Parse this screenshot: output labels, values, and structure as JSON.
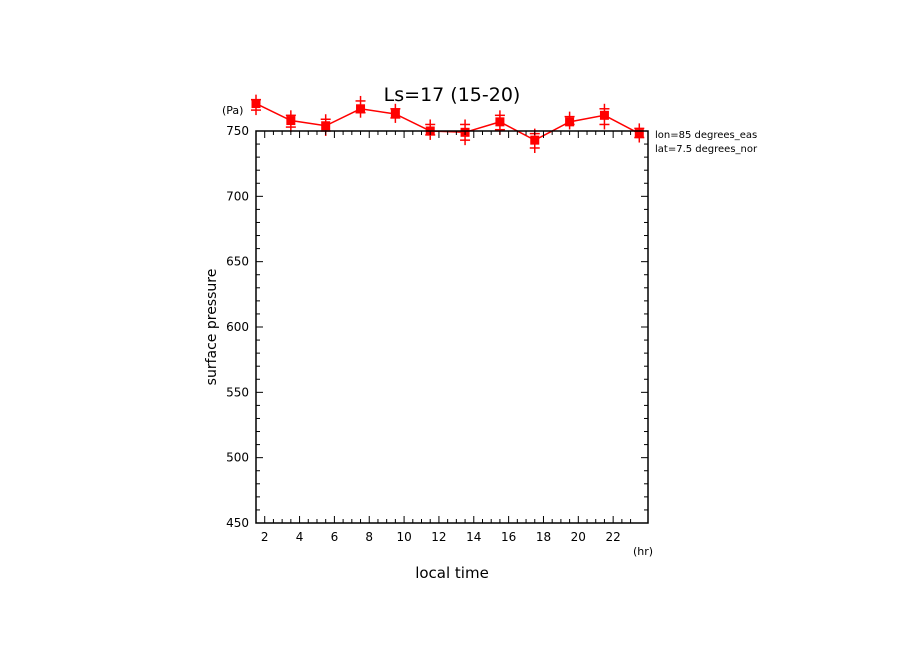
{
  "chart_data": {
    "type": "line",
    "title": "Ls=17 (15-20)",
    "xlabel": "local time",
    "ylabel": "surface pressure",
    "x_unit": "(hr)",
    "y_unit": "(Pa)",
    "xlim": [
      1.5,
      24
    ],
    "ylim": [
      450,
      750
    ],
    "x_ticks": [
      2,
      4,
      6,
      8,
      10,
      12,
      14,
      16,
      18,
      20,
      22
    ],
    "y_ticks": [
      450,
      500,
      550,
      600,
      650,
      700,
      750
    ],
    "x_tick_labels": [
      "2",
      "4",
      "6",
      "8",
      "10",
      "12",
      "14",
      "16",
      "18",
      "20",
      "22"
    ],
    "y_tick_labels": [
      "450",
      "500",
      "550",
      "600",
      "650",
      "700",
      "750"
    ],
    "annotations": [
      "lon=85 degrees_eas",
      "lat=7.5 degrees_nor"
    ],
    "series": [
      {
        "color": "#ff0000",
        "x": [
          1.5,
          3.5,
          5.5,
          7.5,
          9.5,
          11.5,
          13.5,
          15.5,
          17.5,
          19.5,
          21.5,
          23.5
        ],
        "values": [
          771,
          758,
          754,
          767,
          763,
          750,
          749,
          757,
          743,
          757,
          762,
          748
        ],
        "spread": [
          [
            766,
            774
          ],
          [
            753,
            762
          ],
          [
            750,
            759
          ],
          [
            764,
            773
          ],
          [
            760,
            767
          ],
          [
            747,
            755
          ],
          [
            743,
            755
          ],
          [
            751,
            762
          ],
          [
            737,
            748
          ],
          [
            755,
            761
          ],
          [
            755,
            767
          ],
          [
            745,
            752
          ]
        ]
      }
    ]
  }
}
